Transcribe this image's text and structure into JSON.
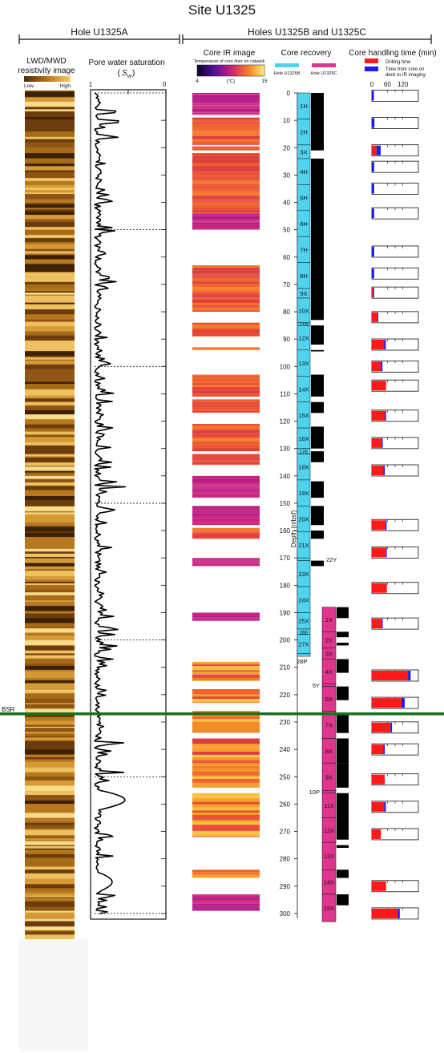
{
  "title": "Site U1325",
  "hole_a_label": "Hole  U1325A",
  "hole_bc_label": "Holes U1325B and U1325C",
  "lwd": {
    "title_line1": "LWD/MWD",
    "title_line2": "resistivity image",
    "low": "Low",
    "high": "High"
  },
  "pore": {
    "title": "Pore water saturation",
    "symbol": "S",
    "subscript": "w",
    "tick_left": "1",
    "tick_right": "0"
  },
  "ir": {
    "title": "Core IR image",
    "subtitle": "Temperature of core liner on catwalk",
    "scale_min": "4",
    "scale_unit": "(°C)",
    "scale_max": "15"
  },
  "recovery": {
    "title": "Core recovery",
    "legend_b": "Hole U1325B",
    "legend_c": "Hole U1325C",
    "color_b": "#4fd4f0",
    "color_c": "#e0358f"
  },
  "handling": {
    "title": "Core handling time (min)",
    "legend_drill": "Drilling time",
    "legend_deck_line1": "Time from core on",
    "legend_deck_line2": "deck to IR imaging",
    "color_drill": "#ff1a1a",
    "color_deck": "#1a1aff",
    "ticks": [
      "0",
      "60",
      "120"
    ]
  },
  "depth_axis": {
    "label": "Depth (mbsf)",
    "ticks": [
      "0",
      "10",
      "20",
      "30",
      "40",
      "50",
      "60",
      "70",
      "80",
      "90",
      "100",
      "110",
      "120",
      "130",
      "140",
      "150",
      "160",
      "170",
      "180",
      "190",
      "200",
      "210",
      "220",
      "230",
      "240",
      "250",
      "260",
      "270",
      "280",
      "290",
      "300"
    ]
  },
  "bsr_label": "BSR",
  "chart_data": {
    "type": "table",
    "depth_min": 0,
    "depth_max": 305,
    "bsr_depth": 227,
    "cores_b": [
      {
        "label": "1H",
        "top": 0,
        "bot": 9.5
      },
      {
        "label": "2H",
        "top": 9.5,
        "bot": 19
      },
      {
        "label": "3X",
        "top": 19,
        "bot": 24
      },
      {
        "label": "4H",
        "top": 24,
        "bot": 33.5
      },
      {
        "label": "5H",
        "top": 33.5,
        "bot": 43
      },
      {
        "label": "6H",
        "top": 43,
        "bot": 52.5
      },
      {
        "label": "7H",
        "top": 52.5,
        "bot": 62
      },
      {
        "label": "8H",
        "top": 62,
        "bot": 71.5
      },
      {
        "label": "9X",
        "top": 71.5,
        "bot": 75
      },
      {
        "label": "10X",
        "top": 75,
        "bot": 84
      },
      {
        "label": "11P",
        "top": 84,
        "bot": 85
      },
      {
        "label": "12X",
        "top": 85,
        "bot": 94
      },
      {
        "label": "13X",
        "top": 94,
        "bot": 103.5
      },
      {
        "label": "14X",
        "top": 103.5,
        "bot": 113
      },
      {
        "label": "15X",
        "top": 113,
        "bot": 122.5
      },
      {
        "label": "16X",
        "top": 122.5,
        "bot": 130
      },
      {
        "label": "17E",
        "top": 130,
        "bot": 132
      },
      {
        "label": "18X",
        "top": 132,
        "bot": 141.5
      },
      {
        "label": "19X",
        "top": 141.5,
        "bot": 151
      },
      {
        "label": "20X",
        "top": 151,
        "bot": 160.5
      },
      {
        "label": "21X",
        "top": 160.5,
        "bot": 170
      },
      {
        "label": "22Y",
        "top": 170,
        "bot": 171
      },
      {
        "label": "23X",
        "top": 171,
        "bot": 180.5
      },
      {
        "label": "24X",
        "top": 180.5,
        "bot": 190
      },
      {
        "label": "25X",
        "top": 190,
        "bot": 196
      },
      {
        "label": "26E",
        "top": 196,
        "bot": 198
      },
      {
        "label": "27X",
        "top": 198,
        "bot": 205
      },
      {
        "label": "28P",
        "top": 205,
        "bot": 206
      }
    ],
    "recovered_b": [
      [
        0,
        21
      ],
      [
        24,
        83
      ],
      [
        85,
        92
      ],
      [
        94,
        94.5
      ],
      [
        103,
        111
      ],
      [
        113,
        117
      ],
      [
        122,
        130
      ],
      [
        131,
        135
      ],
      [
        142,
        148
      ],
      [
        151,
        158
      ],
      [
        160,
        163
      ],
      [
        171,
        173
      ]
    ],
    "cores_c": [
      {
        "label": "1X",
        "top": 188,
        "bot": 197
      },
      {
        "label": "2X",
        "top": 197,
        "bot": 203
      },
      {
        "label": "3X",
        "top": 203,
        "bot": 207
      },
      {
        "label": "4X",
        "top": 207,
        "bot": 216
      },
      {
        "label": "5Y",
        "top": 216,
        "bot": 217
      },
      {
        "label": "6X",
        "top": 217,
        "bot": 226
      },
      {
        "label": "7X",
        "top": 226,
        "bot": 236
      },
      {
        "label": "8X",
        "top": 236,
        "bot": 245
      },
      {
        "label": "9X",
        "top": 245,
        "bot": 255
      },
      {
        "label": "10P",
        "top": 255,
        "bot": 256
      },
      {
        "label": "11X",
        "top": 256,
        "bot": 265
      },
      {
        "label": "12X",
        "top": 265,
        "bot": 274
      },
      {
        "label": "13X",
        "top": 274,
        "bot": 284
      },
      {
        "label": "14X",
        "top": 284,
        "bot": 293
      },
      {
        "label": "15X",
        "top": 293,
        "bot": 303
      }
    ],
    "recovered_c": [
      [
        188,
        192
      ],
      [
        197,
        199
      ],
      [
        201,
        202
      ],
      [
        207,
        212
      ],
      [
        217,
        222
      ],
      [
        227,
        234
      ],
      [
        236,
        245
      ],
      [
        245,
        254
      ],
      [
        256,
        265
      ],
      [
        265,
        273
      ],
      [
        275,
        276
      ],
      [
        284,
        287
      ],
      [
        293,
        297
      ]
    ],
    "handling_max": 180,
    "handling": [
      {
        "depth": 1,
        "drill": 0,
        "deck": 8
      },
      {
        "depth": 11,
        "drill": 0,
        "deck": 10
      },
      {
        "depth": 21,
        "drill": 18,
        "deck": 16
      },
      {
        "depth": 27,
        "drill": 0,
        "deck": 9
      },
      {
        "depth": 35,
        "drill": 0,
        "deck": 9
      },
      {
        "depth": 44,
        "drill": 0,
        "deck": 9
      },
      {
        "depth": 58,
        "drill": 0,
        "deck": 9
      },
      {
        "depth": 66,
        "drill": 0,
        "deck": 9
      },
      {
        "depth": 73,
        "drill": 5,
        "deck": 4
      },
      {
        "depth": 82,
        "drill": 22,
        "deck": 3
      },
      {
        "depth": 92,
        "drill": 48,
        "deck": 6
      },
      {
        "depth": 100,
        "drill": 35,
        "deck": 6
      },
      {
        "depth": 107,
        "drill": 55,
        "deck": 0
      },
      {
        "depth": 118,
        "drill": 50,
        "deck": 5
      },
      {
        "depth": 128,
        "drill": 38,
        "deck": 4
      },
      {
        "depth": 138,
        "drill": 45,
        "deck": 5
      },
      {
        "depth": 158,
        "drill": 52,
        "deck": 5
      },
      {
        "depth": 168,
        "drill": 55,
        "deck": 3
      },
      {
        "depth": 181,
        "drill": 58,
        "deck": 0
      },
      {
        "depth": 194,
        "drill": 38,
        "deck": 4
      },
      {
        "depth": 213,
        "drill": 140,
        "deck": 10
      },
      {
        "depth": 223,
        "drill": 115,
        "deck": 12
      },
      {
        "depth": 232,
        "drill": 72,
        "deck": 6
      },
      {
        "depth": 240,
        "drill": 45,
        "deck": 5
      },
      {
        "depth": 251,
        "drill": 50,
        "deck": 0
      },
      {
        "depth": 261,
        "drill": 48,
        "deck": 6
      },
      {
        "depth": 271,
        "drill": 35,
        "deck": 0
      },
      {
        "depth": 290,
        "drill": 55,
        "deck": 0
      },
      {
        "depth": 300,
        "drill": 100,
        "deck": 8
      }
    ],
    "ir_intervals": [
      [
        0,
        8
      ],
      [
        9,
        19
      ],
      [
        19.5,
        21
      ],
      [
        22,
        44
      ],
      [
        44,
        50
      ],
      [
        63,
        80
      ],
      [
        84,
        89
      ],
      [
        93,
        94
      ],
      [
        103,
        111
      ],
      [
        112,
        117
      ],
      [
        121,
        131
      ],
      [
        132,
        136
      ],
      [
        140,
        148
      ],
      [
        151,
        158
      ],
      [
        159,
        163
      ],
      [
        170,
        173
      ],
      [
        190,
        193
      ],
      [
        208,
        215
      ],
      [
        218,
        223
      ],
      [
        226,
        234
      ],
      [
        236,
        245
      ],
      [
        245,
        254
      ],
      [
        256,
        264
      ],
      [
        264,
        272
      ],
      [
        284,
        287
      ],
      [
        293,
        299
      ]
    ],
    "pore_dashed_depths": [
      0,
      50,
      100,
      150,
      200,
      250,
      300
    ]
  }
}
